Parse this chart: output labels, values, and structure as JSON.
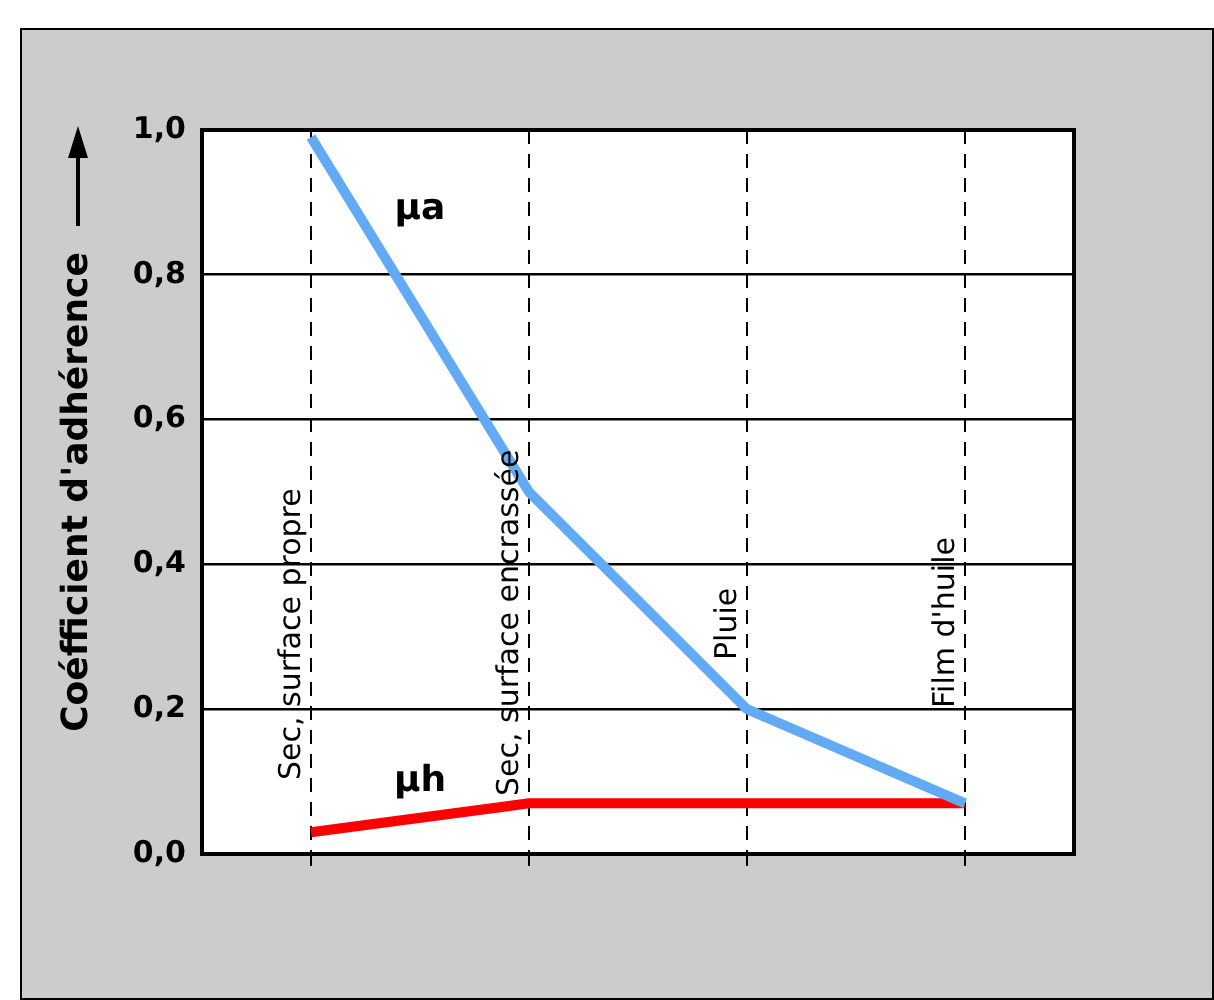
{
  "chart_data": {
    "type": "line",
    "ylabel": "Coéfficient d'adhérence",
    "categories": [
      "Sec, surface propre",
      "Sec, surface encrassée",
      "Pluie",
      "Film d'huile"
    ],
    "series": [
      {
        "name": "µa",
        "color": "#63aaf5",
        "values": [
          0.99,
          0.5,
          0.2,
          0.07
        ]
      },
      {
        "name": "µh",
        "color": "#ff0000",
        "values": [
          0.03,
          0.07,
          0.07,
          0.07
        ]
      }
    ],
    "ylim": [
      0,
      1
    ],
    "yticks": [
      {
        "value": 0,
        "label": "0,0"
      },
      {
        "value": 0.2,
        "label": "0,2"
      },
      {
        "value": 0.4,
        "label": "0,4"
      },
      {
        "value": 0.6,
        "label": "0,6"
      },
      {
        "value": 0.8,
        "label": "0,8"
      },
      {
        "value": 1,
        "label": "1,0"
      }
    ],
    "grid": true,
    "legend": false,
    "marker": "none",
    "line_style": "solid"
  }
}
